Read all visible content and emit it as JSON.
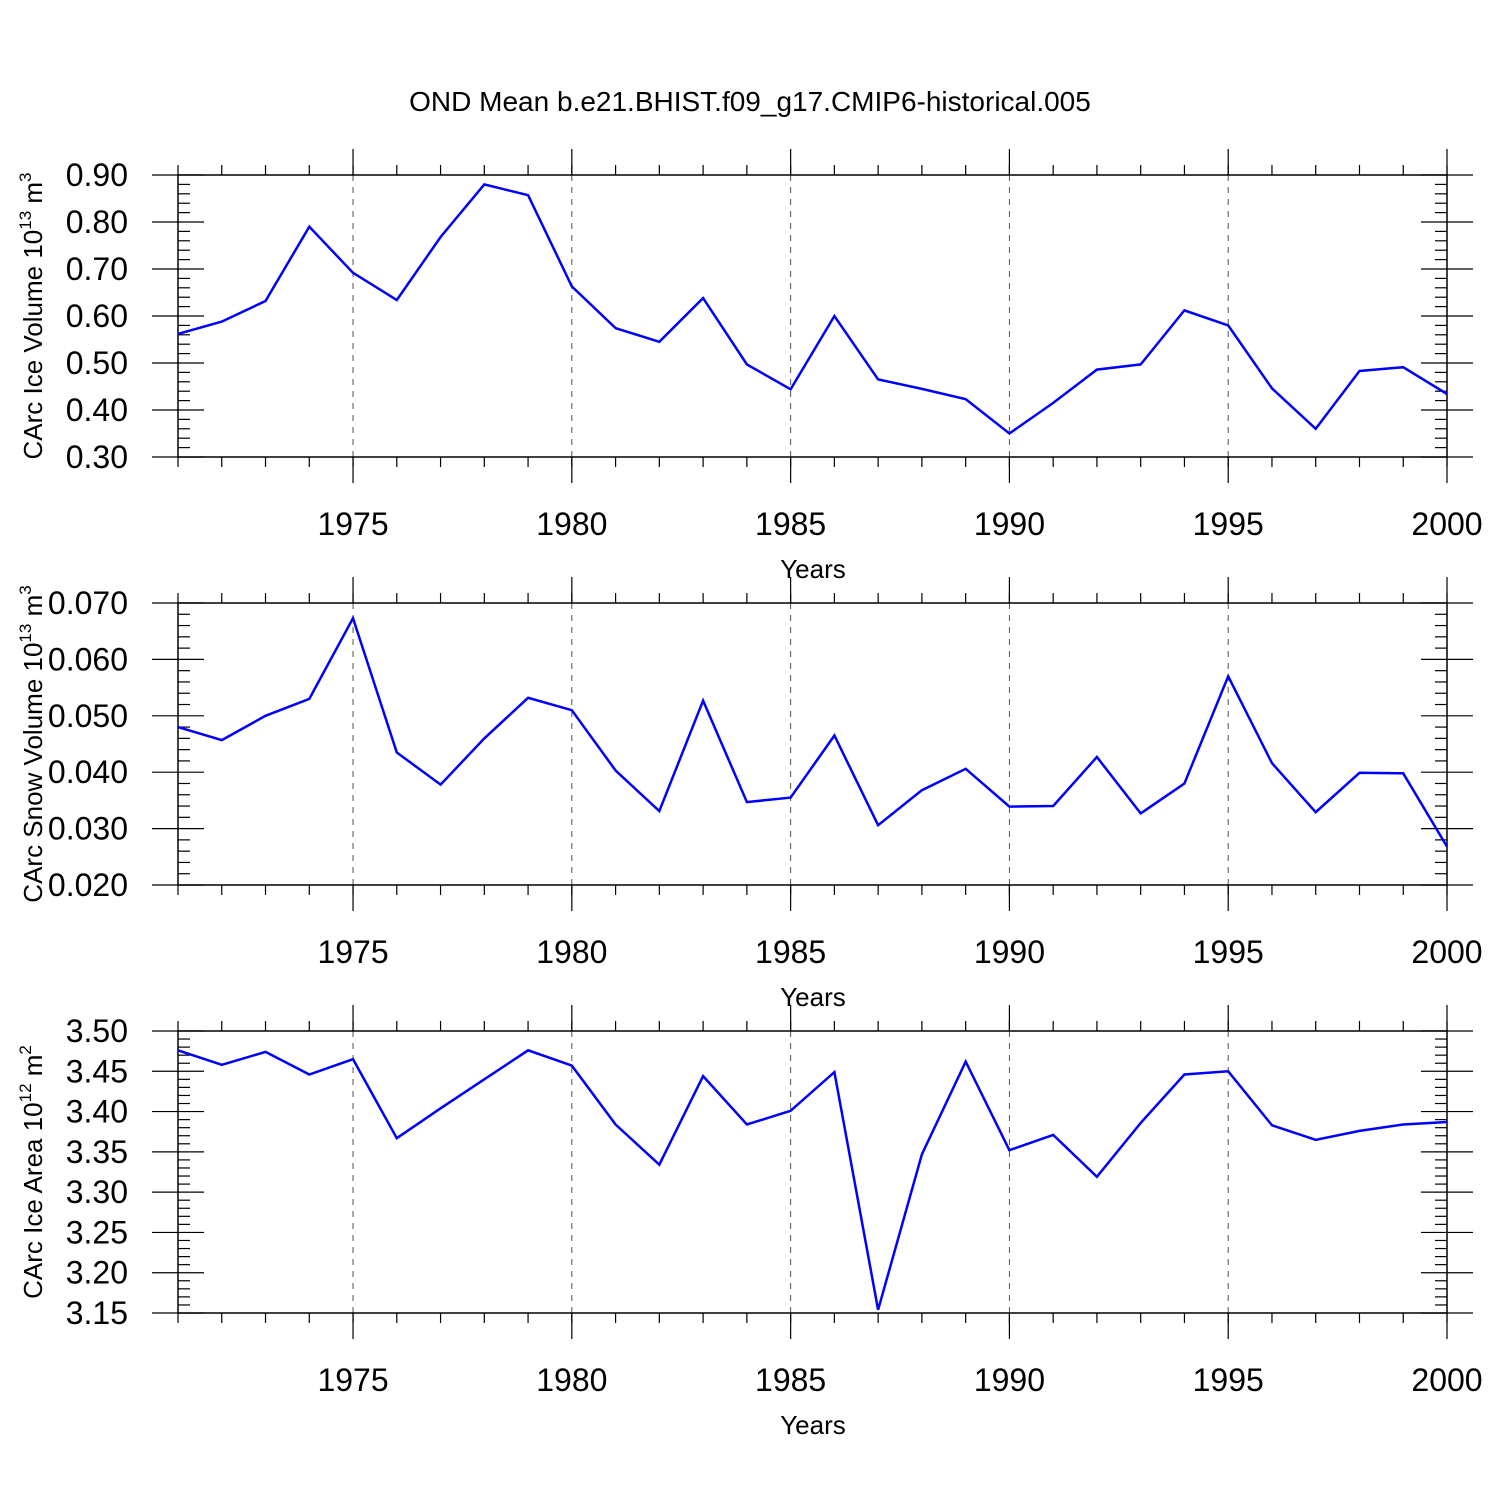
{
  "chart_data": {
    "title": "OND Mean b.e21.BHIST.f09_g17.CMIP6-historical.005",
    "panels": [
      {
        "type": "line",
        "xlabel": "Years",
        "ylabel_main": "CArc Ice Volume 10",
        "ylabel_exp": "13",
        "ylabel_unit": " m",
        "ylabel_unit_exp": "3",
        "xlim": [
          1971,
          2000
        ],
        "ylim": [
          0.3,
          0.9
        ],
        "yticks": [
          0.3,
          0.4,
          0.5,
          0.6,
          0.7,
          0.8,
          0.9
        ],
        "yticklabels": [
          "0.30",
          "0.40",
          "0.50",
          "0.60",
          "0.70",
          "0.80",
          "0.90"
        ],
        "xticks": [
          1975,
          1980,
          1985,
          1990,
          1995,
          2000
        ],
        "xticklabels": [
          "1975",
          "1980",
          "1985",
          "1990",
          "1995",
          "2000"
        ],
        "grid": "dashed vertical",
        "series": [
          {
            "name": "CArc Ice Volume",
            "color": "#0000ff",
            "values": [
              0.562,
              0.588,
              0.632,
              0.79,
              0.692,
              0.634,
              0.768,
              0.88,
              0.857,
              0.663,
              0.574,
              0.545,
              0.638,
              0.497,
              0.444,
              0.6,
              0.465,
              0.445,
              0.423,
              0.35,
              0.415,
              0.486,
              0.497,
              0.612,
              0.58,
              0.446,
              0.36,
              0.483,
              0.491,
              0.434
            ]
          }
        ]
      },
      {
        "type": "line",
        "xlabel": "Years",
        "ylabel_main": "CArc Snow Volume 10",
        "ylabel_exp": "13",
        "ylabel_unit": " m",
        "ylabel_unit_exp": "3",
        "xlim": [
          1971,
          2000
        ],
        "ylim": [
          0.02,
          0.07
        ],
        "yticks": [
          0.02,
          0.03,
          0.04,
          0.05,
          0.06,
          0.07
        ],
        "yticklabels": [
          "0.020",
          "0.030",
          "0.040",
          "0.050",
          "0.060",
          "0.070"
        ],
        "xticks": [
          1975,
          1980,
          1985,
          1990,
          1995,
          2000
        ],
        "xticklabels": [
          "1975",
          "1980",
          "1985",
          "1990",
          "1995",
          "2000"
        ],
        "grid": "dashed vertical",
        "series": [
          {
            "name": "CArc Snow Volume",
            "color": "#0000ff",
            "values": [
              0.048,
              0.0457,
              0.05,
              0.053,
              0.0673,
              0.0435,
              0.0378,
              0.046,
              0.0532,
              0.051,
              0.0403,
              0.0331,
              0.0527,
              0.0347,
              0.0355,
              0.0465,
              0.0306,
              0.0368,
              0.0406,
              0.0339,
              0.034,
              0.0427,
              0.0327,
              0.038,
              0.057,
              0.0416,
              0.0329,
              0.0399,
              0.0398,
              0.0268
            ]
          }
        ]
      },
      {
        "type": "line",
        "xlabel": "Years",
        "ylabel_main": "CArc Ice Area 10",
        "ylabel_exp": "12",
        "ylabel_unit": " m",
        "ylabel_unit_exp": "2",
        "xlim": [
          1971,
          2000
        ],
        "ylim": [
          3.15,
          3.5
        ],
        "yticks": [
          3.15,
          3.2,
          3.25,
          3.3,
          3.35,
          3.4,
          3.45,
          3.5
        ],
        "yticklabels": [
          "3.15",
          "3.20",
          "3.25",
          "3.30",
          "3.35",
          "3.40",
          "3.45",
          "3.50"
        ],
        "xticks": [
          1975,
          1980,
          1985,
          1990,
          1995,
          2000
        ],
        "xticklabels": [
          "1975",
          "1980",
          "1985",
          "1990",
          "1995",
          "2000"
        ],
        "grid": "dashed vertical",
        "series": [
          {
            "name": "CArc Ice Area",
            "color": "#0000ff",
            "values": [
              3.476,
              3.458,
              3.474,
              3.446,
              3.465,
              3.367,
              3.404,
              3.44,
              3.476,
              3.457,
              3.384,
              3.334,
              3.444,
              3.384,
              3.401,
              3.449,
              3.154,
              3.347,
              3.462,
              3.352,
              3.371,
              3.319,
              3.386,
              3.446,
              3.45,
              3.383,
              3.365,
              3.376,
              3.384,
              3.387
            ]
          }
        ]
      }
    ]
  }
}
